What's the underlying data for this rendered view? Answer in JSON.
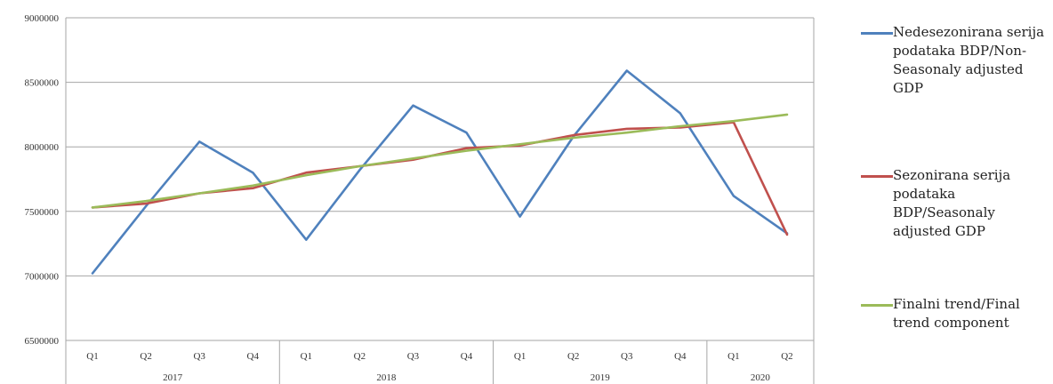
{
  "chart_data": {
    "type": "line",
    "categories": [
      "Q1",
      "Q2",
      "Q3",
      "Q4",
      "Q1",
      "Q2",
      "Q3",
      "Q4",
      "Q1",
      "Q2",
      "Q3",
      "Q4",
      "Q1",
      "Q2"
    ],
    "year_groups": [
      {
        "label": "2017",
        "count": 4
      },
      {
        "label": "2018",
        "count": 4
      },
      {
        "label": "2019",
        "count": 4
      },
      {
        "label": "2020",
        "count": 2
      }
    ],
    "ylim": [
      6500000,
      9000000
    ],
    "yticks": [
      "6500000",
      "7000000",
      "7500000",
      "8000000",
      "8500000",
      "9000000"
    ],
    "ytick_values": [
      6500000,
      7000000,
      7500000,
      8000000,
      8500000,
      9000000
    ],
    "grid": true,
    "legend_position": "right",
    "series": [
      {
        "name": "Nedesezonirana serija podataka BDP/Non-Seasonaly adjusted GDP",
        "color": "#4f81bd",
        "values": [
          7020000,
          7540000,
          8040000,
          7800000,
          7280000,
          7820000,
          8320000,
          8110000,
          7460000,
          8080000,
          8590000,
          8260000,
          7620000,
          7330000
        ]
      },
      {
        "name": "Sezonirana serija podataka BDP/Seasonaly adjusted GDP",
        "color": "#c0504d",
        "values": [
          7530000,
          7560000,
          7640000,
          7680000,
          7800000,
          7850000,
          7900000,
          7990000,
          8010000,
          8090000,
          8140000,
          8150000,
          8190000,
          7320000
        ]
      },
      {
        "name": "Finalni trend/Final trend component",
        "color": "#9bbb59",
        "values": [
          7530000,
          7580000,
          7640000,
          7700000,
          7780000,
          7850000,
          7910000,
          7970000,
          8020000,
          8070000,
          8110000,
          8160000,
          8200000,
          8250000
        ]
      }
    ]
  }
}
